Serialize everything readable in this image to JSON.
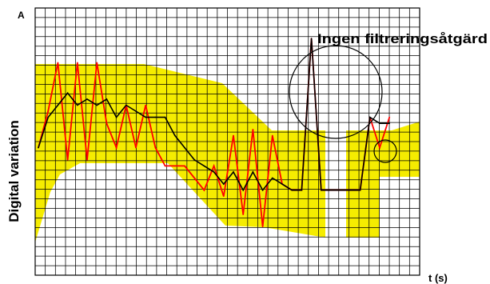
{
  "chart_data": {
    "type": "line",
    "ylabel": "Digital variation",
    "ylabel_top": "A",
    "xlabel": "t (s)",
    "annotation": "Ingen filtreringsåtgärd",
    "grid": true,
    "xlim": [
      0,
      38
    ],
    "ylim": [
      0,
      22
    ],
    "x": [
      0,
      1,
      2,
      3,
      4,
      5,
      6,
      7,
      8,
      9,
      10,
      11,
      12,
      13,
      14,
      15,
      16,
      17,
      18,
      19,
      20,
      21,
      22,
      23,
      24,
      25,
      26,
      27,
      28,
      29,
      30,
      31,
      32,
      33,
      34,
      35,
      36
    ],
    "series": [
      {
        "color": "#ff0000",
        "values": [
          10.5,
          13.5,
          17.5,
          9.5,
          17.5,
          9.5,
          17.5,
          12.5,
          10.5,
          14,
          10.5,
          14,
          10.5,
          9,
          9,
          9,
          8,
          7,
          9,
          6.5,
          11.5,
          5,
          12,
          4,
          11.5,
          7.5,
          7,
          7,
          19.5,
          7,
          7,
          7,
          7,
          7,
          13,
          10.5,
          13
        ]
      },
      {
        "color": "#000000",
        "values": [
          10.5,
          13,
          14,
          15,
          14,
          14.5,
          14,
          14.5,
          13,
          14,
          13.5,
          13,
          13,
          13,
          11.5,
          10.5,
          9.5,
          9,
          8.5,
          7.5,
          8.5,
          7,
          8.5,
          7,
          8,
          7.5,
          7,
          7,
          19.5,
          7,
          7,
          7,
          7,
          7,
          13,
          12.5,
          12.5
        ]
      }
    ],
    "colors": {
      "band": "#f5ec00",
      "grid": "#000000"
    }
  }
}
